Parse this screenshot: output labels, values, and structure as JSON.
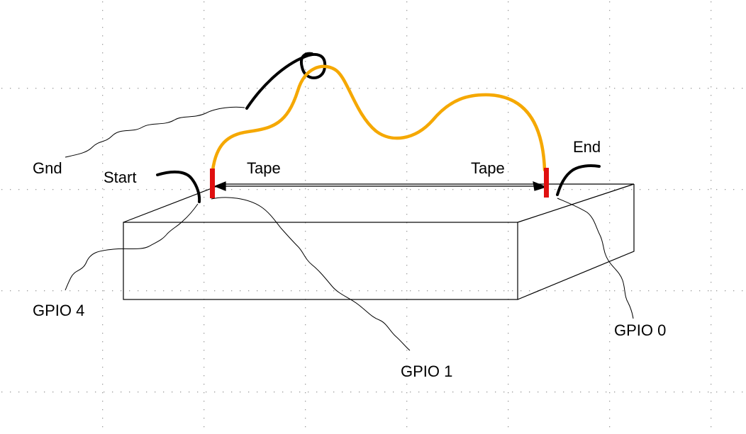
{
  "labels": {
    "gnd": "Gnd",
    "start": "Start",
    "tape_left": "Tape",
    "tape_right": "Tape",
    "end": "End",
    "gpio4": "GPIO 4",
    "gpio1": "GPIO 1",
    "gpio0": "GPIO 0"
  },
  "colors": {
    "wire_loop": "#f5a800",
    "wire_black": "#000000",
    "tape": "#e01010",
    "outline": "#000000",
    "grid_dot": "#9a9a9a"
  }
}
